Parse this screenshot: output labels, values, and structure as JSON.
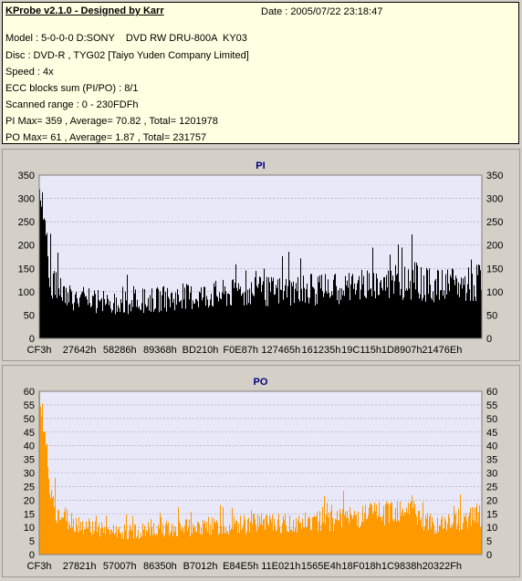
{
  "header": {
    "title": "KProbe v2.1.0 - Designed by Karr",
    "date": "Date : 2005/07/22 23:18:47",
    "lines": [
      "Model : 5-0-0-0 D:SONY    DVD RW DRU-800A  KY03",
      "Disc : DVD-R , TYG02 [Taiyo Yuden Company Limited]",
      "Speed : 4x",
      "ECC blocks sum (PI/PO) : 8/1",
      "Scanned range : 0 - 230FDFh",
      "PI Max= 359 , Average= 70.82 , Total= 1201978",
      "PO Max= 61 , Average= 1.87 , Total= 231757"
    ]
  },
  "colors": {
    "plot_bg": "#e8e8f8",
    "pi_bar": "#000000",
    "po_bar": "#ff9900",
    "title": "#000080"
  },
  "chart_data": [
    {
      "type": "bar",
      "title": "PI",
      "ylim": [
        0,
        350
      ],
      "yticks": [
        0,
        50,
        100,
        150,
        200,
        250,
        300,
        350
      ],
      "xticks": [
        "CF3h",
        "27642h",
        "58286h",
        "89368h",
        "BD210h",
        "F0E87h",
        "127465h",
        "161235h",
        "19C115h",
        "1D8907h",
        "21476Eh"
      ],
      "grid": true,
      "profile": [
        [
          0,
          330
        ],
        [
          0.01,
          250
        ],
        [
          0.02,
          160
        ],
        [
          0.04,
          125
        ],
        [
          0.07,
          110
        ],
        [
          0.1,
          100
        ],
        [
          0.15,
          92
        ],
        [
          0.2,
          93
        ],
        [
          0.25,
          100
        ],
        [
          0.3,
          105
        ],
        [
          0.35,
          110
        ],
        [
          0.4,
          115
        ],
        [
          0.45,
          118
        ],
        [
          0.5,
          122
        ],
        [
          0.55,
          125
        ],
        [
          0.6,
          127
        ],
        [
          0.65,
          130
        ],
        [
          0.7,
          135
        ],
        [
          0.75,
          140
        ],
        [
          0.8,
          148
        ],
        [
          0.85,
          150
        ],
        [
          0.88,
          138
        ],
        [
          0.92,
          135
        ],
        [
          0.96,
          140
        ],
        [
          1.0,
          145
        ]
      ],
      "max": 359,
      "average": 70.82
    },
    {
      "type": "bar",
      "title": "PO",
      "ylim": [
        0,
        60
      ],
      "yticks": [
        0,
        5,
        10,
        15,
        20,
        25,
        30,
        35,
        40,
        45,
        50,
        55,
        60
      ],
      "xticks": [
        "CF3h",
        "27821h",
        "57007h",
        "86350h",
        "B7012h",
        "E84E5h",
        "11E021h",
        "1565E4h",
        "18F018h",
        "1C9838h",
        "20322Fh"
      ],
      "grid": true,
      "profile": [
        [
          0,
          55
        ],
        [
          0.01,
          45
        ],
        [
          0.02,
          28
        ],
        [
          0.04,
          18
        ],
        [
          0.07,
          15
        ],
        [
          0.1,
          13
        ],
        [
          0.15,
          11
        ],
        [
          0.2,
          10
        ],
        [
          0.25,
          11
        ],
        [
          0.3,
          12
        ],
        [
          0.35,
          12
        ],
        [
          0.4,
          13
        ],
        [
          0.45,
          13
        ],
        [
          0.5,
          14
        ],
        [
          0.55,
          14
        ],
        [
          0.6,
          15
        ],
        [
          0.65,
          15
        ],
        [
          0.7,
          16
        ],
        [
          0.75,
          18
        ],
        [
          0.8,
          20
        ],
        [
          0.84,
          22
        ],
        [
          0.87,
          14
        ],
        [
          0.92,
          14
        ],
        [
          0.96,
          16
        ],
        [
          1.0,
          18
        ]
      ],
      "max": 61,
      "average": 1.87
    }
  ]
}
